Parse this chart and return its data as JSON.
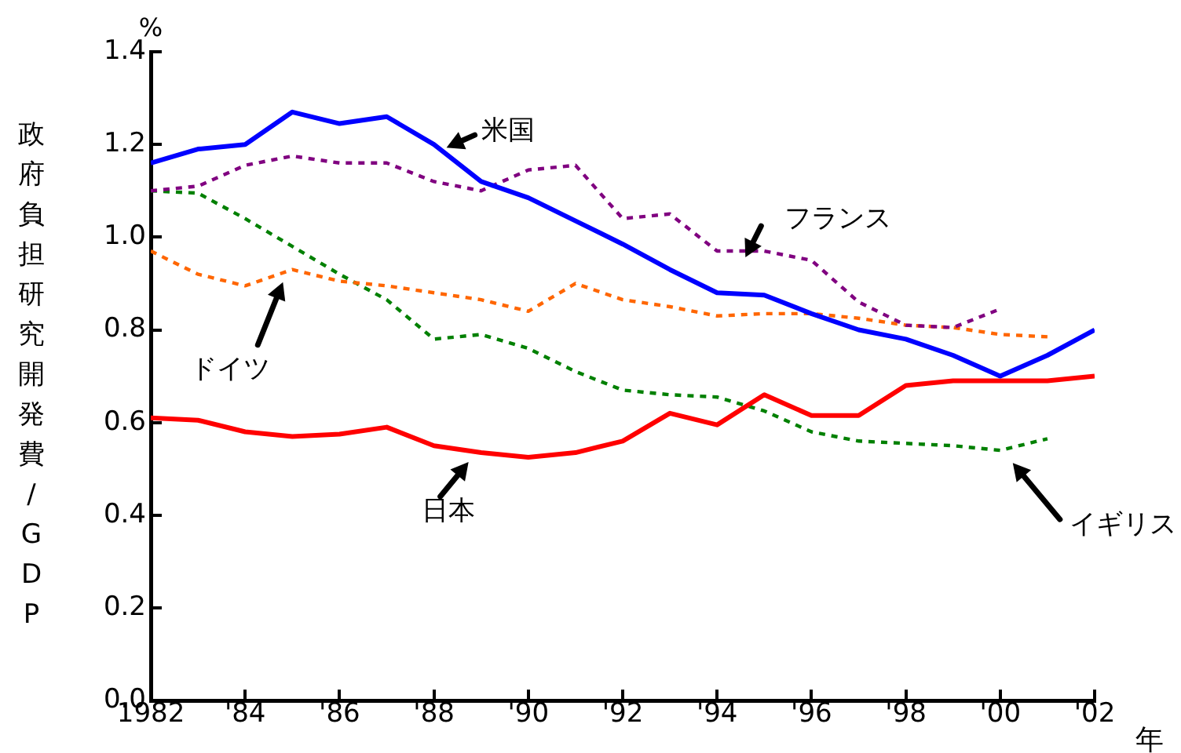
{
  "chart_data": {
    "type": "line",
    "xlabel": "年",
    "ylabel": "政府負担研究開発費/GDP",
    "annotations": [
      "%"
    ],
    "x": [
      1982,
      1983,
      1984,
      1985,
      1986,
      1987,
      1988,
      1989,
      1990,
      1991,
      1992,
      1993,
      1994,
      1995,
      1996,
      1997,
      1998,
      1999,
      2000,
      2001,
      2002
    ],
    "series": [
      {
        "name": "米国",
        "color": "#0000ff",
        "line_style": "solid",
        "values": [
          1.16,
          1.19,
          1.2,
          1.27,
          1.245,
          1.26,
          1.2,
          1.12,
          1.085,
          1.035,
          0.985,
          0.93,
          0.88,
          0.875,
          0.835,
          0.8,
          0.78,
          0.745,
          0.7,
          0.745,
          0.8
        ]
      },
      {
        "name": "フランス",
        "color": "#800080",
        "line_style": "dotted",
        "values": [
          1.1,
          1.11,
          1.155,
          1.175,
          1.16,
          1.16,
          1.12,
          1.1,
          1.145,
          1.155,
          1.04,
          1.05,
          0.97,
          0.97,
          0.95,
          0.86,
          0.81,
          0.805,
          0.845,
          null,
          null
        ]
      },
      {
        "name": "ドイツ",
        "color": "#ff6600",
        "line_style": "dotted",
        "values": [
          0.97,
          0.92,
          0.895,
          0.93,
          0.905,
          0.895,
          0.88,
          0.865,
          0.84,
          0.9,
          0.865,
          0.85,
          0.83,
          0.835,
          0.835,
          0.825,
          0.81,
          0.805,
          0.79,
          0.785,
          null
        ]
      },
      {
        "name": "日本",
        "color": "#ff0000",
        "line_style": "solid",
        "values": [
          0.61,
          0.605,
          0.58,
          0.57,
          0.575,
          0.59,
          0.55,
          0.535,
          0.525,
          0.535,
          0.56,
          0.62,
          0.595,
          0.66,
          0.615,
          0.615,
          0.68,
          0.69,
          0.69,
          0.69,
          0.7
        ]
      },
      {
        "name": "イギリス",
        "color": "#008000",
        "line_style": "dotted",
        "values": [
          1.1,
          1.095,
          1.04,
          0.98,
          0.92,
          0.865,
          0.78,
          0.79,
          0.76,
          0.71,
          0.67,
          0.66,
          0.655,
          0.625,
          0.58,
          0.56,
          0.555,
          0.55,
          0.54,
          0.565,
          null
        ]
      }
    ],
    "xlim": [
      1982,
      2002
    ],
    "xticks": [
      1982,
      {
        "value": 1984,
        "label": "'84"
      },
      {
        "value": 1986,
        "label": "'86"
      },
      {
        "value": 1988,
        "label": "'88"
      },
      {
        "value": 1990,
        "label": "'90"
      },
      {
        "value": 1992,
        "label": "'92"
      },
      {
        "value": 1994,
        "label": "'94"
      },
      {
        "value": 1996,
        "label": "'96"
      },
      {
        "value": 1998,
        "label": "'98"
      },
      {
        "value": 2000,
        "label": "'00"
      },
      {
        "value": 2002,
        "label": "'02"
      }
    ],
    "ylim": [
      0,
      1.4
    ],
    "yticks": [
      {
        "value": 0,
        "label": "0.0"
      },
      {
        "value": 0.2,
        "label": "0.2"
      },
      {
        "value": 0.4,
        "label": "0.4"
      },
      {
        "value": 0.6,
        "label": "0.6"
      },
      {
        "value": 0.8,
        "label": "0.8"
      },
      {
        "value": 1,
        "label": "1.0"
      },
      {
        "value": 1.2,
        "label": "1.2"
      },
      {
        "value": 1.4,
        "label": "1.4"
      }
    ],
    "grid": false,
    "legend": false,
    "marker": "none"
  }
}
